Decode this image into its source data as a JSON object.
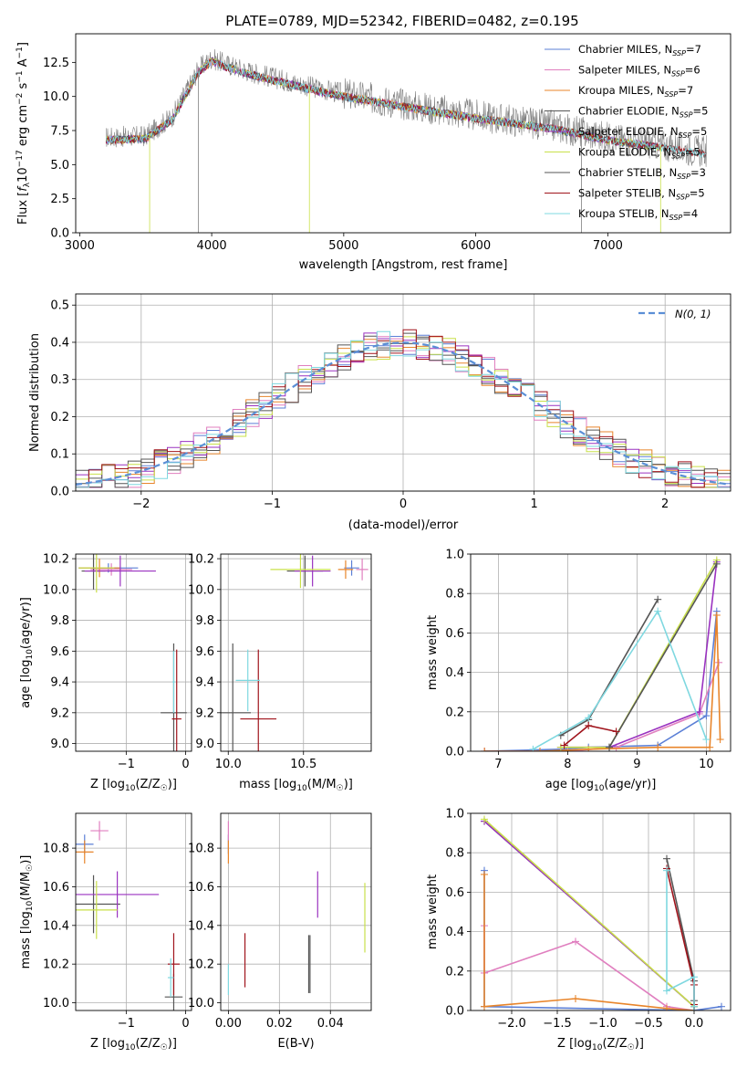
{
  "figure": {
    "title": "PLATE=0789, MJD=52342, FIBERID=0482, z=0.195"
  },
  "colors": {
    "Chabrier MILES": "#5b7fd6",
    "Salpeter MILES": "#e07fbf",
    "Kroupa MILES": "#e8852b",
    "Chabrier ELODIE": "#555555",
    "Salpeter ELODIE": "#9a32c0",
    "Kroupa ELODIE": "#c9e04a",
    "Chabrier STELIB": "#555555",
    "Salpeter STELIB": "#a0141c",
    "Kroupa STELIB": "#7fd8e0"
  },
  "chart_data": [
    {
      "id": "spectrum",
      "type": "line",
      "title": "PLATE=0789, MJD=52342, FIBERID=0482, z=0.195",
      "xlabel": "wavelength [Angstrom, rest frame]",
      "ylabel_parts": [
        "Flux [",
        "f",
        "λ",
        "10",
        "−17",
        " erg cm",
        "−2",
        " s",
        "−1",
        " A",
        "−1",
        "]"
      ],
      "xlim": [
        2970,
        7930
      ],
      "ylim": [
        0,
        14.6
      ],
      "xticks": [
        "3000",
        "4000",
        "5000",
        "6000",
        "7000"
      ],
      "xtick_values": [
        3000,
        4000,
        5000,
        6000,
        7000
      ],
      "yticks": [
        "0.0",
        "2.5",
        "5.0",
        "7.5",
        "10.0",
        "12.5"
      ],
      "ytick_values": [
        0,
        2.5,
        5,
        7.5,
        10,
        12.5
      ],
      "legend_position": "upper right",
      "legend": [
        {
          "name": "Chabrier MILES, N",
          "sub": "SSP",
          "val": "=7"
        },
        {
          "name": "Salpeter MILES, N",
          "sub": "SSP",
          "val": "=6"
        },
        {
          "name": "Kroupa MILES, N",
          "sub": "SSP",
          "val": "=7"
        },
        {
          "name": "Chabrier ELODIE, N",
          "sub": "SSP",
          "val": "=5"
        },
        {
          "name": "Salpeter ELODIE, N",
          "sub": "SSP",
          "val": "=5"
        },
        {
          "name": "Kroupa ELODIE, N",
          "sub": "SSP",
          "val": "=5"
        },
        {
          "name": "Chabrier STELIB, N",
          "sub": "SSP",
          "val": "=3"
        },
        {
          "name": "Salpeter STELIB, N",
          "sub": "SSP",
          "val": "=5"
        },
        {
          "name": "Kroupa STELIB, N",
          "sub": "SSP",
          "val": "=4"
        }
      ],
      "continuum": {
        "wavelength": [
          3200,
          3500,
          3700,
          3900,
          4000,
          4100,
          4300,
          4500,
          4800,
          5000,
          5300,
          5600,
          6000,
          6300,
          6600,
          6800,
          7000,
          7300,
          7700
        ],
        "flux": [
          7.0,
          7.1,
          8.5,
          12.0,
          12.8,
          12.4,
          11.8,
          11.3,
          10.6,
          10.2,
          9.7,
          9.2,
          8.6,
          8.2,
          7.8,
          7.4,
          7.0,
          6.6,
          6.0
        ]
      },
      "drops": [
        {
          "wavelength": 3530,
          "flux": 0
        },
        {
          "wavelength": 3900,
          "flux": 0
        },
        {
          "wavelength": 4740,
          "flux": 0
        },
        {
          "wavelength": 6800,
          "flux": 0
        },
        {
          "wavelength": 7400,
          "flux": 0
        }
      ]
    },
    {
      "id": "residuals",
      "type": "histogram",
      "xlabel": "(data-model)/error",
      "ylabel": "Normed distribution",
      "xlim": [
        -2.5,
        2.5
      ],
      "ylim": [
        0,
        0.53
      ],
      "xticks": [
        "−2",
        "−1",
        "0",
        "1",
        "2"
      ],
      "xtick_values": [
        -2,
        -1,
        0,
        1,
        2
      ],
      "yticks": [
        "0.0",
        "0.1",
        "0.2",
        "0.3",
        "0.4",
        "0.5"
      ],
      "ytick_values": [
        0,
        0.1,
        0.2,
        0.3,
        0.4,
        0.5
      ],
      "bin_edges_range": [
        -2.5,
        2.5
      ],
      "bin_count": 50,
      "legend_position": "upper right",
      "legend": [
        {
          "name": "N(0,1)",
          "style": "dashed",
          "color": "#5b8fd6"
        }
      ],
      "series": [
        {
          "name": "Chabrier MILES",
          "sigma": 1.0,
          "seed": 1
        },
        {
          "name": "Salpeter MILES",
          "sigma": 1.0,
          "seed": 2
        },
        {
          "name": "Kroupa MILES",
          "sigma": 1.0,
          "seed": 3
        },
        {
          "name": "Chabrier ELODIE",
          "sigma": 1.0,
          "seed": 4
        },
        {
          "name": "Salpeter ELODIE",
          "sigma": 1.0,
          "seed": 5
        },
        {
          "name": "Kroupa ELODIE",
          "sigma": 1.0,
          "seed": 6
        },
        {
          "name": "Chabrier STELIB",
          "sigma": 1.0,
          "seed": 7
        },
        {
          "name": "Salpeter STELIB",
          "sigma": 1.0,
          "seed": 8
        },
        {
          "name": "Kroupa STELIB",
          "sigma": 1.0,
          "seed": 9
        }
      ]
    },
    {
      "id": "z-age",
      "type": "errorbar",
      "xlabel": "Z [log10(Z/Z☉)]",
      "xlabel_parts": [
        "Z [log",
        "10",
        "(Z/Z",
        "☉",
        ")]"
      ],
      "ylabel_parts": [
        "age  [log",
        "10",
        "(age/yr)]"
      ],
      "xlim": [
        -1.85,
        0.1
      ],
      "ylim": [
        8.95,
        10.23
      ],
      "xticks": [
        "−1",
        "0"
      ],
      "xtick_values": [
        -1,
        0
      ],
      "yticks": [
        "9.0",
        "9.2",
        "9.4",
        "9.6",
        "9.8",
        "10.0",
        "10.2"
      ],
      "ytick_values": [
        9.0,
        9.2,
        9.4,
        9.6,
        9.8,
        10.0,
        10.2
      ],
      "points": [
        {
          "series": "Chabrier MILES",
          "x": -1.3,
          "y": 10.14,
          "xerr": 0.5,
          "yerr": 0.03
        },
        {
          "series": "Salpeter MILES",
          "x": -1.25,
          "y": 10.13,
          "xerr": 0.35,
          "yerr": 0.04
        },
        {
          "series": "Kroupa MILES",
          "x": -1.45,
          "y": 10.14,
          "xerr": 0.35,
          "yerr": 0.06
        },
        {
          "series": "Chabrier ELODIE",
          "x": -1.55,
          "y": 10.12,
          "xerr": 0.2,
          "yerr": 0.12
        },
        {
          "series": "Salpeter ELODIE",
          "x": -1.1,
          "y": 10.12,
          "xerr": 0.6,
          "yerr": 0.1
        },
        {
          "series": "Kroupa ELODIE",
          "x": -1.5,
          "y": 10.14,
          "xerr": 0.3,
          "yerr": 0.16
        },
        {
          "series": "Chabrier STELIB",
          "x": -0.2,
          "y": 9.2,
          "xerr": 0.22,
          "yerr": 0.45
        },
        {
          "series": "Salpeter STELIB",
          "x": -0.15,
          "y": 9.16,
          "xerr": 0.08,
          "yerr": 0.45
        },
        {
          "series": "Kroupa STELIB",
          "x": -0.2,
          "y": 9.4,
          "xerr": 0.02,
          "yerr": 0.2
        }
      ]
    },
    {
      "id": "mass-age",
      "type": "errorbar",
      "xlabel_parts": [
        "mass [log",
        "10",
        "(M/M",
        "☉",
        ")]"
      ],
      "xlim": [
        9.95,
        10.95
      ],
      "ylim": [
        8.95,
        10.23
      ],
      "xticks": [
        "10.0",
        "10.5"
      ],
      "xtick_values": [
        10.0,
        10.5
      ],
      "yticks": [
        "9.0",
        "9.2",
        "9.4",
        "9.6",
        "9.8",
        "10.0",
        "10.2"
      ],
      "ytick_values": [
        9.0,
        9.2,
        9.4,
        9.6,
        9.8,
        10.0,
        10.2
      ],
      "points": [
        {
          "series": "Chabrier MILES",
          "x": 10.82,
          "y": 10.14,
          "xerr": 0.05,
          "yerr": 0.05
        },
        {
          "series": "Salpeter MILES",
          "x": 10.89,
          "y": 10.13,
          "xerr": 0.04,
          "yerr": 0.07
        },
        {
          "series": "Kroupa MILES",
          "x": 10.78,
          "y": 10.13,
          "xerr": 0.05,
          "yerr": 0.06
        },
        {
          "series": "Chabrier ELODIE",
          "x": 10.51,
          "y": 10.12,
          "xerr": 0.12,
          "yerr": 0.1
        },
        {
          "series": "Salpeter ELODIE",
          "x": 10.56,
          "y": 10.12,
          "xerr": 0.12,
          "yerr": 0.1
        },
        {
          "series": "Kroupa ELODIE",
          "x": 10.48,
          "y": 10.13,
          "xerr": 0.2,
          "yerr": 0.12
        },
        {
          "series": "Chabrier STELIB",
          "x": 10.03,
          "y": 9.2,
          "xerr": 0.12,
          "yerr": 0.45
        },
        {
          "series": "Salpeter STELIB",
          "x": 10.2,
          "y": 9.16,
          "xerr": 0.12,
          "yerr": 0.45
        },
        {
          "series": "Kroupa STELIB",
          "x": 10.13,
          "y": 9.41,
          "xerr": 0.08,
          "yerr": 0.2
        }
      ]
    },
    {
      "id": "age-weight",
      "type": "line",
      "xlabel_parts": [
        "age  [log",
        "10",
        "(age/yr)]"
      ],
      "ylabel": "mass weight",
      "xlim": [
        6.6,
        10.35
      ],
      "ylim": [
        0,
        1.0
      ],
      "xticks": [
        "7",
        "8",
        "9",
        "10"
      ],
      "xtick_values": [
        7,
        8,
        9,
        10
      ],
      "yticks": [
        "0.0",
        "0.2",
        "0.4",
        "0.6",
        "0.8",
        "1.0"
      ],
      "ytick_values": [
        0,
        0.2,
        0.4,
        0.6,
        0.8,
        1.0
      ],
      "series": [
        {
          "name": "Chabrier MILES",
          "x": [
            6.8,
            7.9,
            8.3,
            9.3,
            10.0,
            10.15
          ],
          "y": [
            0.0,
            0.01,
            0.02,
            0.03,
            0.18,
            0.71
          ]
        },
        {
          "name": "Salpeter MILES",
          "x": [
            6.8,
            7.5,
            8.0,
            8.7,
            9.9,
            10.18
          ],
          "y": [
            0.0,
            0.0,
            0.0,
            0.02,
            0.19,
            0.45
          ]
        },
        {
          "name": "Kroupa MILES",
          "x": [
            6.8,
            7.6,
            8.3,
            9.3,
            10.05,
            10.15,
            10.2
          ],
          "y": [
            0.0,
            0.0,
            0.01,
            0.02,
            0.02,
            0.69,
            0.06
          ]
        },
        {
          "name": "Chabrier ELODIE",
          "x": [
            7.9,
            8.3,
            9.3
          ],
          "y": [
            0.08,
            0.16,
            0.77
          ]
        },
        {
          "name": "Salpeter ELODIE",
          "x": [
            7.9,
            8.6,
            9.9,
            10.15
          ],
          "y": [
            0.02,
            0.02,
            0.2,
            0.96
          ]
        },
        {
          "name": "Kroupa ELODIE",
          "x": [
            7.9,
            8.6,
            10.15
          ],
          "y": [
            0.02,
            0.02,
            0.97
          ]
        },
        {
          "name": "Chabrier STELIB",
          "x": [
            8.6,
            10.15
          ],
          "y": [
            0.02,
            0.95
          ]
        },
        {
          "name": "Salpeter STELIB",
          "x": [
            7.95,
            8.3,
            8.7
          ],
          "y": [
            0.03,
            0.13,
            0.1
          ]
        },
        {
          "name": "Kroupa STELIB",
          "x": [
            7.5,
            8.3,
            9.3,
            10.0
          ],
          "y": [
            0.01,
            0.17,
            0.71,
            0.06
          ]
        }
      ]
    },
    {
      "id": "z-mass",
      "type": "errorbar",
      "xlabel_parts": [
        "Z [log",
        "10",
        "(Z/Z",
        "☉",
        ")]"
      ],
      "ylabel_parts": [
        "mass [log",
        "10",
        "(M/M",
        "☉",
        ")]"
      ],
      "xlim": [
        -1.85,
        0.1
      ],
      "ylim": [
        9.96,
        10.98
      ],
      "xticks": [
        "−1",
        "0"
      ],
      "xtick_values": [
        -1,
        0
      ],
      "yticks": [
        "10.0",
        "10.2",
        "10.4",
        "10.6",
        "10.8"
      ],
      "ytick_values": [
        10.0,
        10.2,
        10.4,
        10.6,
        10.8
      ],
      "points": [
        {
          "series": "Chabrier MILES",
          "x": -1.7,
          "y": 10.82,
          "xerr": 0.15,
          "yerr": 0.05
        },
        {
          "series": "Salpeter MILES",
          "x": -1.45,
          "y": 10.89,
          "xerr": 0.15,
          "yerr": 0.05
        },
        {
          "series": "Kroupa MILES",
          "x": -1.7,
          "y": 10.78,
          "xerr": 0.15,
          "yerr": 0.06
        },
        {
          "series": "Chabrier ELODIE",
          "x": -1.55,
          "y": 10.51,
          "xerr": 0.45,
          "yerr": 0.15
        },
        {
          "series": "Salpeter ELODIE",
          "x": -1.15,
          "y": 10.56,
          "xerr": 0.7,
          "yerr": 0.12
        },
        {
          "series": "Kroupa ELODIE",
          "x": -1.5,
          "y": 10.48,
          "xerr": 0.35,
          "yerr": 0.15
        },
        {
          "series": "Chabrier STELIB",
          "x": -0.2,
          "y": 10.03,
          "xerr": 0.15,
          "yerr": 0.12
        },
        {
          "series": "Salpeter STELIB",
          "x": -0.2,
          "y": 10.2,
          "xerr": 0.1,
          "yerr": 0.16
        },
        {
          "series": "Kroupa STELIB",
          "x": -0.25,
          "y": 10.13,
          "xerr": 0.05,
          "yerr": 0.1
        }
      ]
    },
    {
      "id": "ebv-mass",
      "type": "errorbar",
      "xlabel": "E(B-V)",
      "xlim": [
        -0.003,
        0.056
      ],
      "ylim": [
        9.96,
        10.98
      ],
      "xticks": [
        "0.00",
        "0.02",
        "0.04"
      ],
      "xtick_values": [
        0.0,
        0.02,
        0.04
      ],
      "yticks": [
        "10.0",
        "10.2",
        "10.4",
        "10.6",
        "10.8"
      ],
      "ytick_values": [
        10.0,
        10.2,
        10.4,
        10.6,
        10.8
      ],
      "points": [
        {
          "series": "Chabrier MILES",
          "x": 0.0,
          "y": 10.82,
          "xerr": 0,
          "yerr": 0.05
        },
        {
          "series": "Salpeter MILES",
          "x": 0.0,
          "y": 10.89,
          "xerr": 0,
          "yerr": 0.05
        },
        {
          "series": "Kroupa MILES",
          "x": 0.0,
          "y": 10.78,
          "xerr": 0,
          "yerr": 0.06
        },
        {
          "series": "Chabrier ELODIE",
          "x": 0.032,
          "y": 10.2,
          "xerr": 0,
          "yerr": 0.15
        },
        {
          "series": "Salpeter ELODIE",
          "x": 0.035,
          "y": 10.56,
          "xerr": 0,
          "yerr": 0.12
        },
        {
          "series": "Kroupa ELODIE",
          "x": 0.0535,
          "y": 10.44,
          "xerr": 0,
          "yerr": 0.18
        },
        {
          "series": "Chabrier STELIB",
          "x": 0.0315,
          "y": 10.2,
          "xerr": 0,
          "yerr": 0.15
        },
        {
          "series": "Salpeter STELIB",
          "x": 0.0065,
          "y": 10.22,
          "xerr": 0,
          "yerr": 0.14
        },
        {
          "series": "Kroupa STELIB",
          "x": 0.0,
          "y": 10.12,
          "xerr": 0,
          "yerr": 0.08
        }
      ]
    },
    {
      "id": "z-weight",
      "type": "line",
      "xlabel_parts": [
        "Z [log",
        "10",
        "(Z/Z",
        "☉",
        ")]"
      ],
      "ylabel": "mass weight",
      "xlim": [
        -2.45,
        0.4
      ],
      "ylim": [
        0,
        1.0
      ],
      "xticks": [
        "−2.0",
        "−1.5",
        "−1.0",
        "−0.5",
        "0.0"
      ],
      "xtick_values": [
        -2.0,
        -1.5,
        -1.0,
        -0.5,
        0.0
      ],
      "yticks": [
        "0.0",
        "0.2",
        "0.4",
        "0.6",
        "0.8",
        "1.0"
      ],
      "ytick_values": [
        0,
        0.2,
        0.4,
        0.6,
        0.8,
        1.0
      ],
      "series": [
        {
          "name": "Chabrier MILES",
          "x": [
            -2.3,
            -2.3,
            0.0,
            0.3
          ],
          "y": [
            0.71,
            0.02,
            0.0,
            0.02
          ]
        },
        {
          "name": "Salpeter MILES",
          "x": [
            -2.3,
            -2.3,
            -1.3,
            -0.3,
            0.0
          ],
          "y": [
            0.43,
            0.19,
            0.35,
            0.02,
            0.0
          ]
        },
        {
          "name": "Kroupa MILES",
          "x": [
            -2.3,
            -2.3,
            -1.3,
            -0.3,
            0.0
          ],
          "y": [
            0.69,
            0.02,
            0.06,
            0.01,
            0.0
          ]
        },
        {
          "name": "Chabrier ELODIE",
          "x": [
            -2.3,
            0.0,
            0.0
          ],
          "y": [
            0.96,
            0.02,
            0.05
          ]
        },
        {
          "name": "Salpeter ELODIE",
          "x": [
            -2.3,
            0.0
          ],
          "y": [
            0.96,
            0.02
          ]
        },
        {
          "name": "Kroupa ELODIE",
          "x": [
            -2.3,
            0.0
          ],
          "y": [
            0.97,
            0.02
          ]
        },
        {
          "name": "Chabrier STELIB",
          "x": [
            -0.3,
            0.0,
            0.0
          ],
          "y": [
            0.77,
            0.15,
            0.0
          ]
        },
        {
          "name": "Salpeter STELIB",
          "x": [
            -0.3,
            0.0,
            0.0
          ],
          "y": [
            0.72,
            0.13,
            0.03
          ]
        },
        {
          "name": "Kroupa STELIB",
          "x": [
            -0.3,
            -0.3,
            0.0,
            0.0
          ],
          "y": [
            0.71,
            0.1,
            0.17,
            0.02
          ]
        }
      ]
    }
  ]
}
